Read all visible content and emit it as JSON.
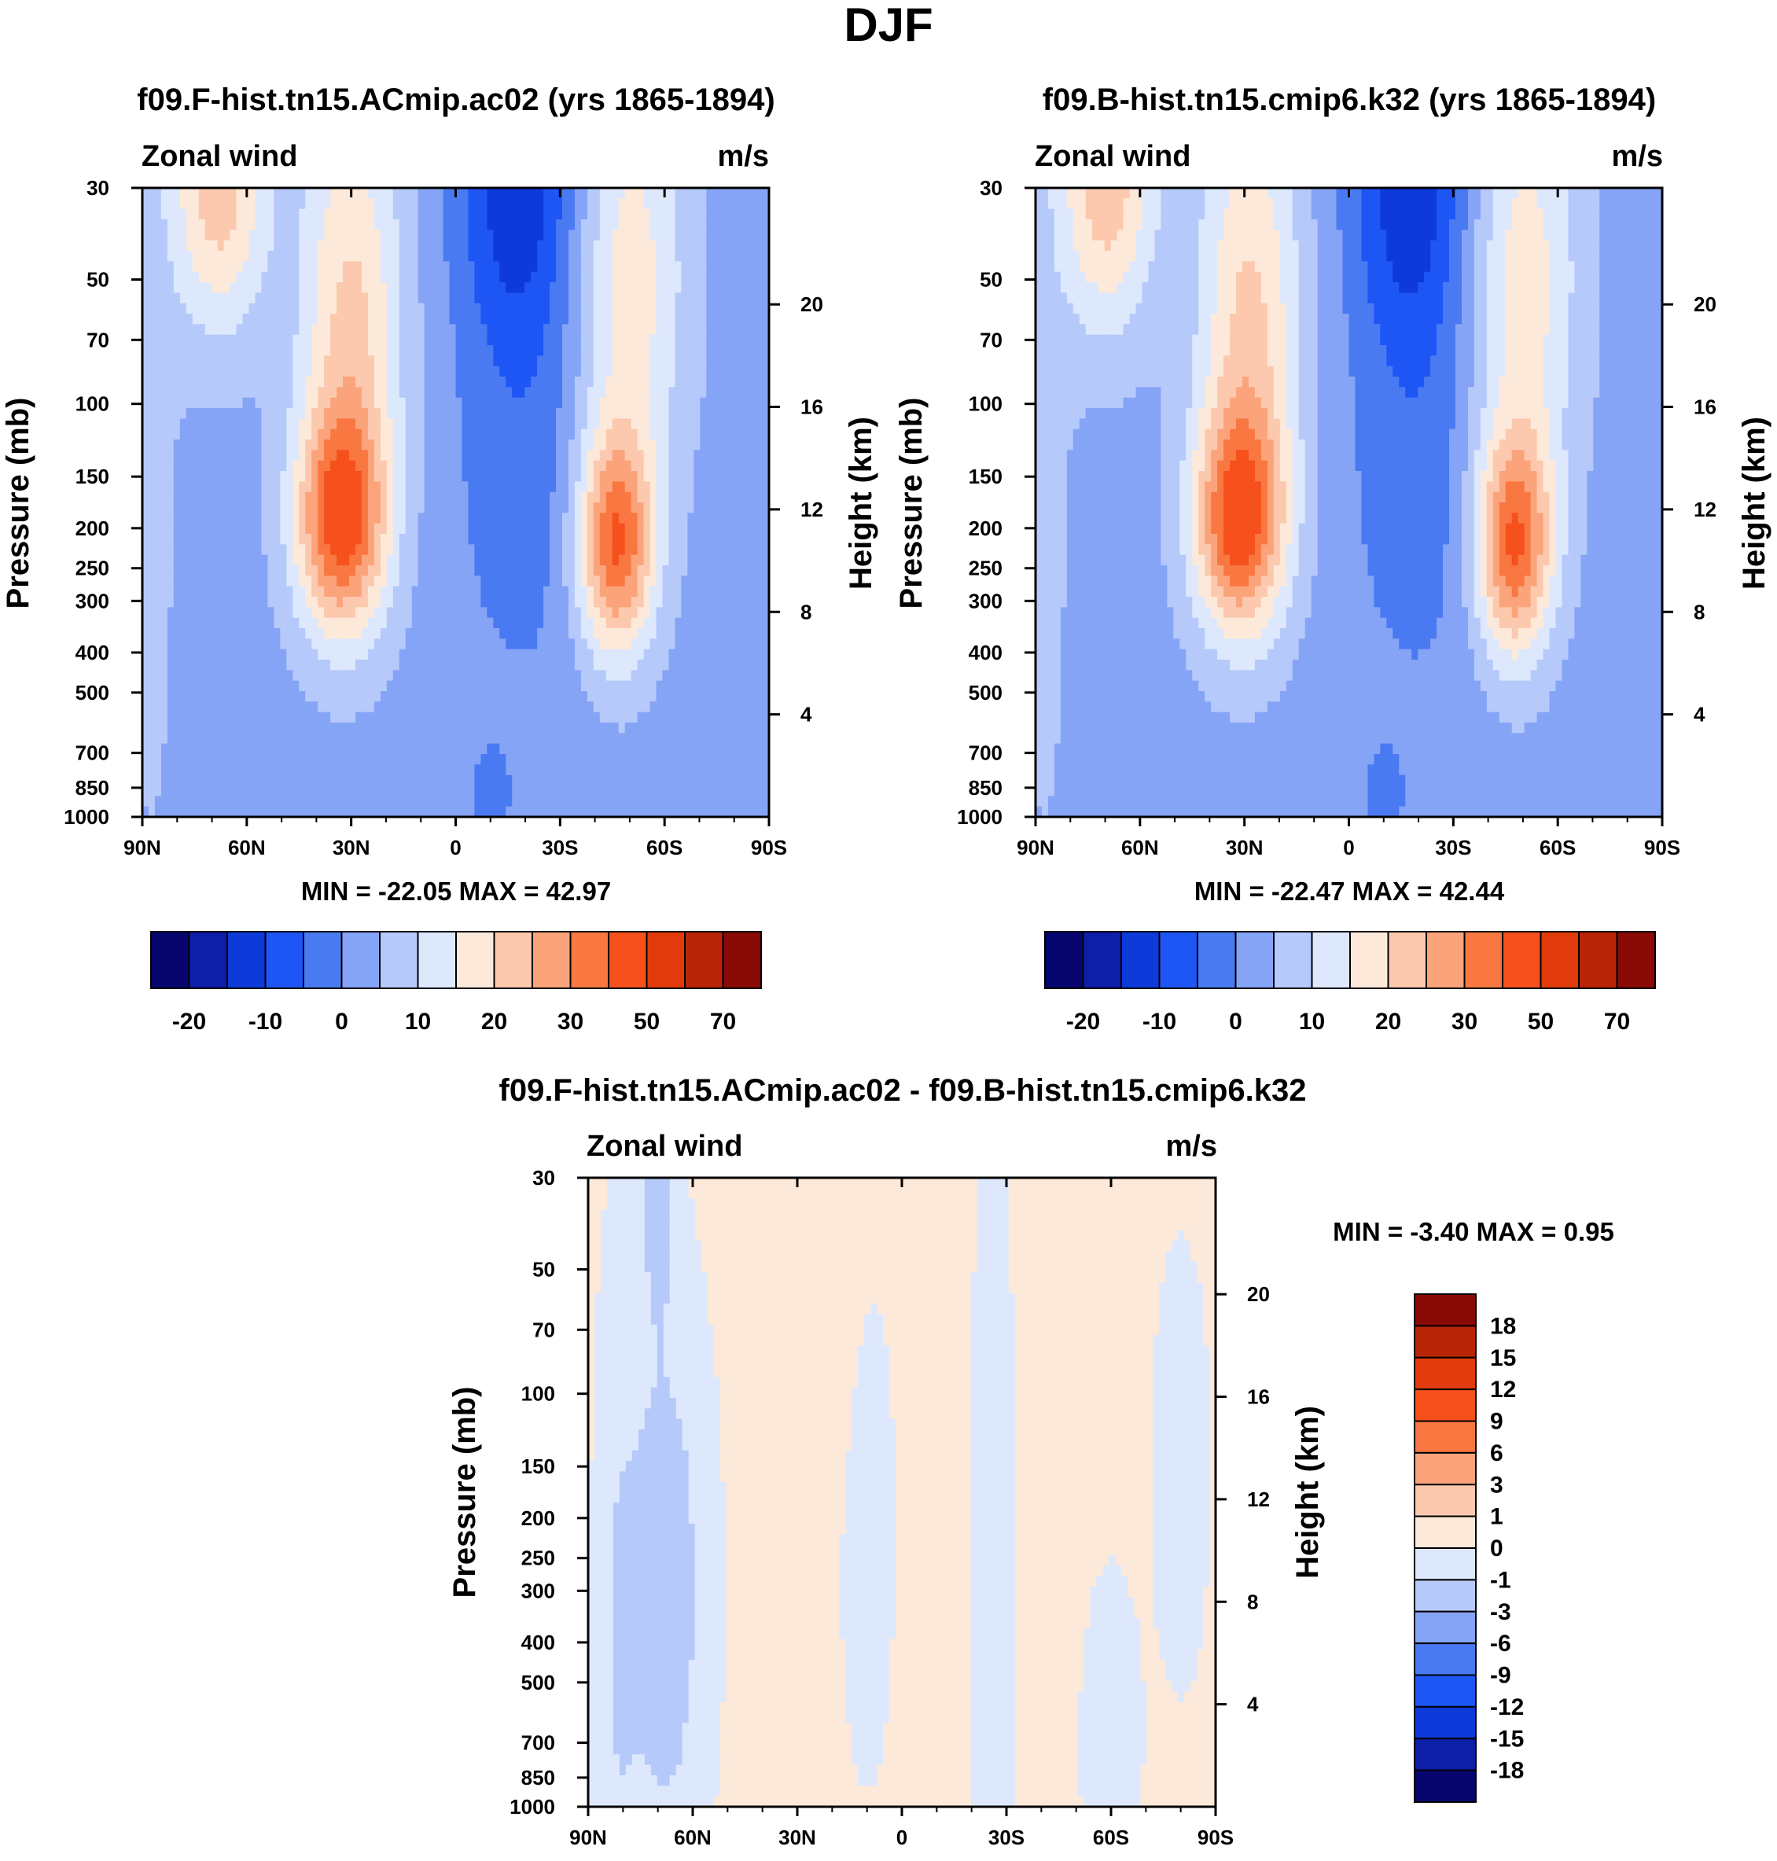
{
  "main_title": "DJF",
  "chart_data": [
    {
      "type": "heatmap",
      "title": "f09.F-hist.tn15.ACmip.ac02 (yrs 1865-1894)",
      "left_label": "Zonal wind",
      "right_label": "m/s",
      "xlabel": "",
      "ylabel": "Pressure (mb)",
      "y2label": "Height (km)",
      "x_ticks": [
        "90N",
        "60N",
        "30N",
        "0",
        "30S",
        "60S",
        "90S"
      ],
      "y_ticks": [
        "30",
        "50",
        "70",
        "100",
        "150",
        "200",
        "250",
        "300",
        "400",
        "500",
        "700",
        "850",
        "1000"
      ],
      "y_tick_values": [
        30,
        50,
        70,
        100,
        150,
        200,
        250,
        300,
        400,
        500,
        700,
        850,
        1000
      ],
      "y2_ticks": [
        "20",
        "16",
        "12",
        "8",
        "4"
      ],
      "y2_tick_values": [
        20,
        16,
        12,
        8,
        4
      ],
      "ylim": [
        1000,
        30
      ],
      "stats": "MIN = -22.05  MAX =  42.97",
      "min": -22.05,
      "max": 42.97,
      "colorbar_labels": [
        "-20",
        "-10",
        "0",
        "10",
        "20",
        "30",
        "50",
        "70"
      ],
      "features": [
        {
          "kind": "jet",
          "lat": 32,
          "p": 200,
          "peak": 42.97
        },
        {
          "kind": "jet",
          "lat": -46,
          "p": 220,
          "peak": 38
        },
        {
          "kind": "easterly_core",
          "lat": -18,
          "p": 30,
          "peak": -22.05
        },
        {
          "kind": "westerly_high",
          "lat": 65,
          "p": 30,
          "peak": 22
        }
      ]
    },
    {
      "type": "heatmap",
      "title": "f09.B-hist.tn15.cmip6.k32 (yrs 1865-1894)",
      "left_label": "Zonal wind",
      "right_label": "m/s",
      "xlabel": "",
      "ylabel": "Pressure (mb)",
      "y2label": "Height (km)",
      "x_ticks": [
        "90N",
        "60N",
        "30N",
        "0",
        "30S",
        "60S",
        "90S"
      ],
      "y_ticks": [
        "30",
        "50",
        "70",
        "100",
        "150",
        "200",
        "250",
        "300",
        "400",
        "500",
        "700",
        "850",
        "1000"
      ],
      "y_tick_values": [
        30,
        50,
        70,
        100,
        150,
        200,
        250,
        300,
        400,
        500,
        700,
        850,
        1000
      ],
      "y2_ticks": [
        "20",
        "16",
        "12",
        "8",
        "4"
      ],
      "y2_tick_values": [
        20,
        16,
        12,
        8,
        4
      ],
      "ylim": [
        1000,
        30
      ],
      "stats": "MIN = -22.47  MAX =  42.44",
      "min": -22.47,
      "max": 42.44,
      "colorbar_labels": [
        "-20",
        "-10",
        "0",
        "10",
        "20",
        "30",
        "50",
        "70"
      ],
      "features": [
        {
          "kind": "jet",
          "lat": 30,
          "p": 200,
          "peak": 42.44
        },
        {
          "kind": "jet",
          "lat": -48,
          "p": 220,
          "peak": 37
        },
        {
          "kind": "easterly_core",
          "lat": -18,
          "p": 30,
          "peak": -22.47
        },
        {
          "kind": "westerly_high",
          "lat": 65,
          "p": 30,
          "peak": 24
        }
      ]
    },
    {
      "type": "heatmap",
      "title": "f09.F-hist.tn15.ACmip.ac02 - f09.B-hist.tn15.cmip6.k32",
      "left_label": "Zonal wind",
      "right_label": "m/s",
      "xlabel": "",
      "ylabel": "Pressure (mb)",
      "y2label": "Height (km)",
      "x_ticks": [
        "90N",
        "60N",
        "30N",
        "0",
        "30S",
        "60S",
        "90S"
      ],
      "y_ticks": [
        "30",
        "50",
        "70",
        "100",
        "150",
        "200",
        "250",
        "300",
        "400",
        "500",
        "700",
        "850",
        "1000"
      ],
      "y_tick_values": [
        30,
        50,
        70,
        100,
        150,
        200,
        250,
        300,
        400,
        500,
        700,
        850,
        1000
      ],
      "y2_ticks": [
        "20",
        "16",
        "12",
        "8",
        "4"
      ],
      "y2_tick_values": [
        20,
        16,
        12,
        8,
        4
      ],
      "ylim": [
        1000,
        30
      ],
      "stats": "MIN =  -3.40  MAX =    0.95",
      "min": -3.4,
      "max": 0.95,
      "colorbar_labels": [
        "18",
        "15",
        "12",
        "9",
        "6",
        "3",
        "1",
        "0",
        "-1",
        "-3",
        "-6",
        "-9",
        "-12",
        "-15",
        "-18"
      ]
    }
  ],
  "colors": {
    "cb1": [
      "#06066e",
      "#0d1fa8",
      "#0e3ad9",
      "#1e56f5",
      "#4a7af2",
      "#86a4f6",
      "#b6c9fb",
      "#dde8fd",
      "#fde9d9",
      "#fcc9ae",
      "#fba47c",
      "#f97741",
      "#f6501d",
      "#e23b0b",
      "#b82507",
      "#8a0a05"
    ],
    "cb2": [
      "#8a0a05",
      "#b82507",
      "#e23b0b",
      "#f6501d",
      "#f97741",
      "#fba47c",
      "#fcc9ae",
      "#fde9d9",
      "#dde8fd",
      "#b6c9fb",
      "#86a4f6",
      "#4a7af2",
      "#1e56f5",
      "#0e3ad9",
      "#0d1fa8",
      "#06066e"
    ]
  }
}
